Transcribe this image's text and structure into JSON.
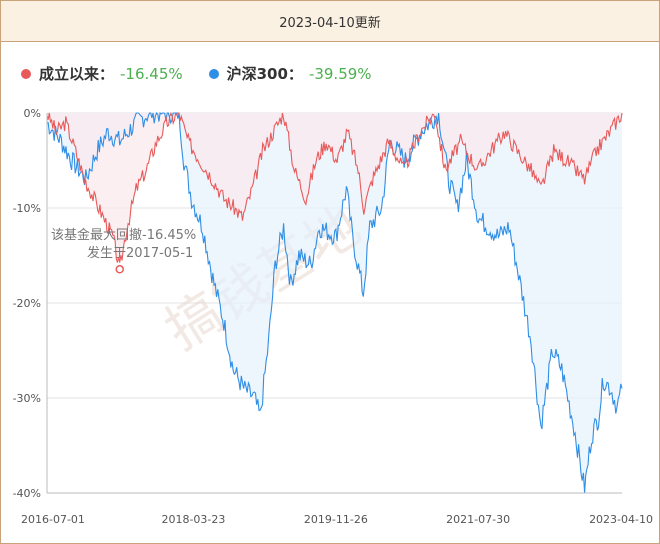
{
  "header": {
    "title": "2023-04-10更新"
  },
  "legend": [
    {
      "name": "成立以来：",
      "value": "-16.45%",
      "color": "#e85a5a"
    },
    {
      "name": "沪深300：",
      "value": "-39.59%",
      "color": "#2f8ee5"
    }
  ],
  "annotation": {
    "line1": "该基金最大回撤-16.45%",
    "line2": "发生于2017-05-1"
  },
  "watermark": "搞钱基地",
  "colors": {
    "fund": "#e85a5a",
    "fund_fill": "#fbe8ec",
    "index": "#2f8ee5",
    "index_fill": "#e6f1fc",
    "grid": "#e3e3e3"
  },
  "chart_data": {
    "type": "area",
    "x_ticks": [
      "2016-07-01",
      "2018-03-23",
      "2019-11-26",
      "2021-07-30",
      "2023-04-10"
    ],
    "y_ticks": [
      "0%",
      "-10%",
      "-20%",
      "-30%",
      "-40%"
    ],
    "ylim": [
      -40,
      0
    ],
    "xlim": [
      "2016-07-01",
      "2023-04-10"
    ],
    "max_drawdown": {
      "date": "2017-05-1",
      "value": -16.45
    },
    "series": [
      {
        "name": "成立以来",
        "points": [
          [
            "2016-07-01",
            0
          ],
          [
            "2016-08-10",
            -2
          ],
          [
            "2016-09-20",
            -1
          ],
          [
            "2016-11-01",
            -4
          ],
          [
            "2016-12-10",
            -7
          ],
          [
            "2017-01-20",
            -9
          ],
          [
            "2017-03-01",
            -11
          ],
          [
            "2017-04-10",
            -13
          ],
          [
            "2017-05-10",
            -16.45
          ],
          [
            "2017-06-10",
            -12
          ],
          [
            "2017-07-20",
            -8
          ],
          [
            "2017-09-01",
            -6
          ],
          [
            "2017-10-15",
            -3
          ],
          [
            "2017-12-01",
            -1
          ],
          [
            "2018-01-20",
            0
          ],
          [
            "2018-03-01",
            -3
          ],
          [
            "2018-04-20",
            -5
          ],
          [
            "2018-06-15",
            -7
          ],
          [
            "2018-08-01",
            -9
          ],
          [
            "2018-09-15",
            -10
          ],
          [
            "2018-10-20",
            -11
          ],
          [
            "2018-12-01",
            -8
          ],
          [
            "2019-01-15",
            -4
          ],
          [
            "2019-03-01",
            -2
          ],
          [
            "2019-04-15",
            0
          ],
          [
            "2019-06-01",
            -6
          ],
          [
            "2019-07-20",
            -9
          ],
          [
            "2019-09-01",
            -5
          ],
          [
            "2019-10-15",
            -3
          ],
          [
            "2019-12-01",
            -5
          ],
          [
            "2020-01-15",
            -2
          ],
          [
            "2020-03-01",
            -6
          ],
          [
            "2020-03-25",
            -10
          ],
          [
            "2020-05-01",
            -7
          ],
          [
            "2020-07-10",
            -3
          ],
          [
            "2020-09-15",
            -6
          ],
          [
            "2020-11-20",
            -2
          ],
          [
            "2021-01-25",
            0
          ],
          [
            "2021-03-10",
            -6
          ],
          [
            "2021-05-15",
            -3
          ],
          [
            "2021-07-30",
            -6
          ],
          [
            "2021-09-20",
            -4
          ],
          [
            "2021-11-20",
            -2
          ],
          [
            "2022-01-15",
            -4
          ],
          [
            "2022-03-15",
            -6
          ],
          [
            "2022-04-26",
            -8
          ],
          [
            "2022-06-20",
            -4
          ],
          [
            "2022-08-15",
            -5
          ],
          [
            "2022-10-31",
            -7
          ],
          [
            "2022-12-20",
            -4
          ],
          [
            "2023-02-15",
            -2
          ],
          [
            "2023-04-10",
            0
          ]
        ]
      },
      {
        "name": "沪深300",
        "points": [
          [
            "2016-07-01",
            -1
          ],
          [
            "2016-09-01",
            -3
          ],
          [
            "2016-10-15",
            -5
          ],
          [
            "2016-12-15",
            -7
          ],
          [
            "2017-02-01",
            -4
          ],
          [
            "2017-03-20",
            -2
          ],
          [
            "2017-05-10",
            -3
          ],
          [
            "2017-07-20",
            -1
          ],
          [
            "2017-09-15",
            0
          ],
          [
            "2017-11-20",
            0
          ],
          [
            "2018-01-20",
            0
          ],
          [
            "2018-02-10",
            -5
          ],
          [
            "2018-03-15",
            -9
          ],
          [
            "2018-05-01",
            -12
          ],
          [
            "2018-06-20",
            -18
          ],
          [
            "2018-08-01",
            -22
          ],
          [
            "2018-09-10",
            -27
          ],
          [
            "2018-10-25",
            -29
          ],
          [
            "2018-12-10",
            -30
          ],
          [
            "2019-01-04",
            -32
          ],
          [
            "2019-02-10",
            -24
          ],
          [
            "2019-03-10",
            -16
          ],
          [
            "2019-04-15",
            -12
          ],
          [
            "2019-05-15",
            -18
          ],
          [
            "2019-06-20",
            -15
          ],
          [
            "2019-08-10",
            -16
          ],
          [
            "2019-09-15",
            -12
          ],
          [
            "2019-11-26",
            -13
          ],
          [
            "2020-01-10",
            -8
          ],
          [
            "2020-02-05",
            -13
          ],
          [
            "2020-03-23",
            -19
          ],
          [
            "2020-04-20",
            -12
          ],
          [
            "2020-06-10",
            -10
          ],
          [
            "2020-07-15",
            -3
          ],
          [
            "2020-09-20",
            -5
          ],
          [
            "2020-11-25",
            -2
          ],
          [
            "2021-02-10",
            0
          ],
          [
            "2021-03-25",
            -7
          ],
          [
            "2021-05-01",
            -10
          ],
          [
            "2021-06-10",
            -5
          ],
          [
            "2021-07-30",
            -11
          ],
          [
            "2021-09-10",
            -12
          ],
          [
            "2021-10-25",
            -13
          ],
          [
            "2021-12-10",
            -12
          ],
          [
            "2022-01-20",
            -17
          ],
          [
            "2022-03-15",
            -24
          ],
          [
            "2022-04-26",
            -33
          ],
          [
            "2022-06-15",
            -25
          ],
          [
            "2022-07-25",
            -27
          ],
          [
            "2022-09-15",
            -33
          ],
          [
            "2022-10-31",
            -39.59
          ],
          [
            "2022-11-30",
            -34
          ],
          [
            "2022-12-30",
            -32
          ],
          [
            "2023-01-20",
            -28
          ],
          [
            "2023-02-20",
            -29
          ],
          [
            "2023-03-20",
            -31
          ],
          [
            "2023-04-10",
            -29
          ]
        ]
      }
    ]
  }
}
